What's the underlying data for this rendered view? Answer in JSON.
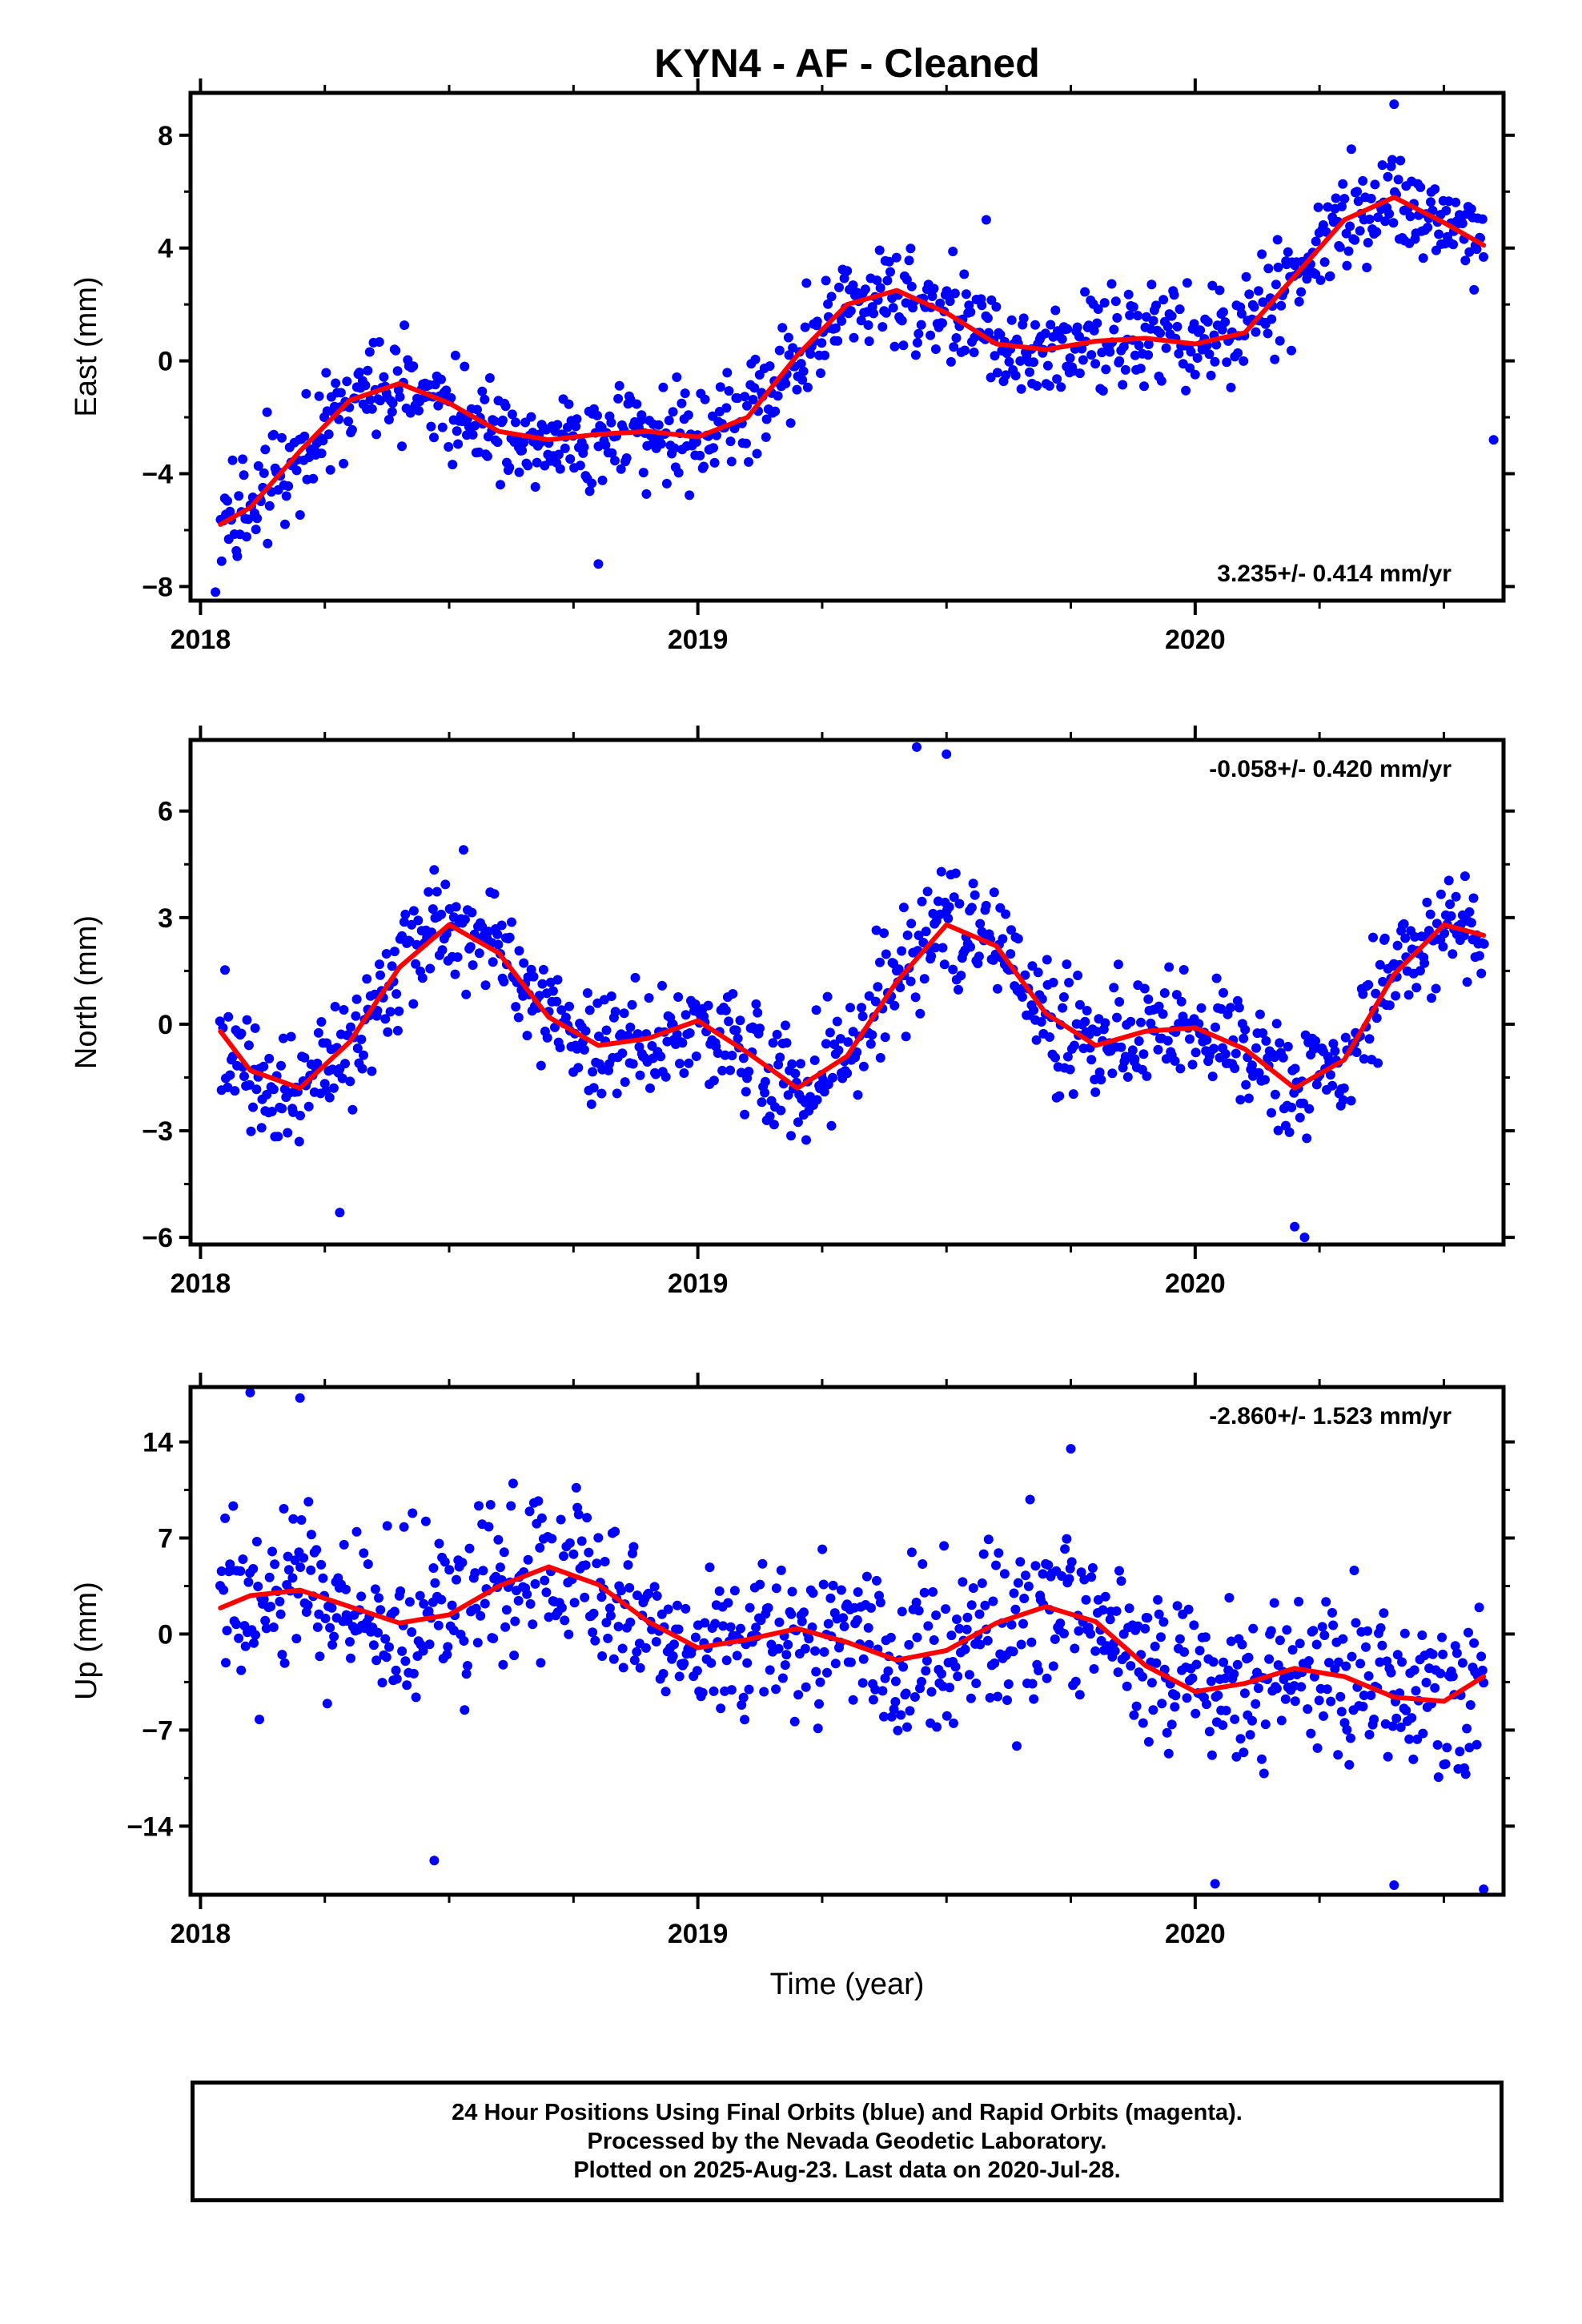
{
  "title": "KYN4  - AF - Cleaned",
  "colors": {
    "points": "#0000ff",
    "fit": "#ff0000",
    "frame": "#000000"
  },
  "xlabel": "Time (year)",
  "footer": {
    "line1": "24 Hour Positions Using Final Orbits (blue) and Rapid Orbits (magenta).",
    "line2": "Processed by the Nevada Geodetic Laboratory.",
    "line3": "Plotted on 2025-Aug-23. Last data on 2020-Jul-28."
  },
  "chart_data": [
    {
      "type": "scatter",
      "ylabel": "East (mm)",
      "rate_label": "3.235+/- 0.414 mm/yr",
      "rate_position": "bottom-right",
      "xlim": [
        2017.98,
        2020.62
      ],
      "ylim": [
        -8.5,
        9.5
      ],
      "xticks": [
        "2018",
        "2019",
        "2020"
      ],
      "yticks": [
        -8,
        -4,
        0,
        4,
        8
      ],
      "grid": false,
      "series": [
        {
          "kind": "points",
          "color": "#0000ff",
          "noise": 1.25,
          "note_points": [
            [
              2018.03,
              -8.2
            ],
            [
              2018.8,
              -7.2
            ],
            [
              2020.4,
              9.1
            ],
            [
              2020.6,
              -2.8
            ],
            [
              2019.58,
              5.0
            ]
          ]
        },
        {
          "kind": "fit-line",
          "color": "#ff0000",
          "x": [
            2018.04,
            2018.1,
            2018.2,
            2018.3,
            2018.4,
            2018.5,
            2018.6,
            2018.7,
            2018.8,
            2018.9,
            2019.0,
            2019.1,
            2019.2,
            2019.3,
            2019.4,
            2019.5,
            2019.6,
            2019.7,
            2019.8,
            2019.9,
            2020.0,
            2020.1,
            2020.2,
            2020.3,
            2020.4,
            2020.5,
            2020.58
          ],
          "y": [
            -5.8,
            -5.2,
            -3.2,
            -1.4,
            -0.8,
            -1.5,
            -2.5,
            -2.8,
            -2.6,
            -2.5,
            -2.7,
            -2.0,
            0.2,
            2.0,
            2.5,
            1.7,
            0.6,
            0.4,
            0.7,
            0.8,
            0.6,
            1.0,
            3.0,
            5.0,
            5.8,
            4.9,
            4.1
          ]
        }
      ]
    },
    {
      "type": "scatter",
      "ylabel": "North (mm)",
      "rate_label": "-0.058+/- 0.420 mm/yr",
      "rate_position": "top-right",
      "xlim": [
        2017.98,
        2020.62
      ],
      "ylim": [
        -6.2,
        8.0
      ],
      "xticks": [
        "2018",
        "2019",
        "2020"
      ],
      "yticks": [
        -6,
        -3,
        0,
        3,
        6
      ],
      "grid": false,
      "series": [
        {
          "kind": "points",
          "color": "#0000ff",
          "noise": 1.1,
          "note_points": [
            [
              2018.28,
              -5.3
            ],
            [
              2019.44,
              7.8
            ],
            [
              2019.5,
              7.6
            ],
            [
              2020.22,
              -6.0
            ],
            [
              2020.2,
              -5.7
            ]
          ]
        },
        {
          "kind": "fit-line",
          "color": "#ff0000",
          "x": [
            2018.04,
            2018.1,
            2018.2,
            2018.3,
            2018.4,
            2018.5,
            2018.6,
            2018.7,
            2018.8,
            2018.9,
            2019.0,
            2019.1,
            2019.2,
            2019.3,
            2019.4,
            2019.5,
            2019.6,
            2019.7,
            2019.8,
            2019.9,
            2020.0,
            2020.1,
            2020.2,
            2020.3,
            2020.4,
            2020.5,
            2020.58
          ],
          "y": [
            -0.2,
            -1.3,
            -1.8,
            -0.5,
            1.6,
            2.8,
            2.0,
            0.2,
            -0.6,
            -0.4,
            0.1,
            -0.8,
            -1.8,
            -0.9,
            1.2,
            2.8,
            2.2,
            0.3,
            -0.6,
            -0.2,
            -0.1,
            -0.7,
            -1.8,
            -1.0,
            1.4,
            2.8,
            2.5
          ]
        }
      ]
    },
    {
      "type": "scatter",
      "ylabel": "Up (mm)",
      "rate_label": "-2.860+/- 1.523 mm/yr",
      "rate_position": "top-right",
      "xlim": [
        2017.98,
        2020.62
      ],
      "ylim": [
        -19.0,
        18.0
      ],
      "xticks": [
        "2018",
        "2019",
        "2020"
      ],
      "yticks": [
        -14,
        -7,
        0,
        7,
        14
      ],
      "grid": false,
      "series": [
        {
          "kind": "points",
          "color": "#0000ff",
          "noise": 4.2,
          "note_points": [
            [
              2018.1,
              17.6
            ],
            [
              2018.2,
              17.2
            ],
            [
              2018.47,
              -16.5
            ],
            [
              2020.04,
              -18.2
            ],
            [
              2020.4,
              -18.3
            ],
            [
              2020.58,
              -18.6
            ],
            [
              2019.75,
              13.5
            ]
          ]
        },
        {
          "kind": "fit-line",
          "color": "#ff0000",
          "x": [
            2018.04,
            2018.1,
            2018.2,
            2018.3,
            2018.4,
            2018.5,
            2018.6,
            2018.7,
            2018.8,
            2018.9,
            2019.0,
            2019.1,
            2019.2,
            2019.3,
            2019.4,
            2019.5,
            2019.6,
            2019.7,
            2019.8,
            2019.9,
            2020.0,
            2020.1,
            2020.2,
            2020.3,
            2020.4,
            2020.5,
            2020.58
          ],
          "y": [
            1.9,
            2.8,
            3.2,
            2.0,
            0.8,
            1.4,
            3.5,
            4.9,
            3.6,
            0.9,
            -1.0,
            -0.4,
            0.4,
            -0.6,
            -1.9,
            -1.2,
            0.8,
            2.0,
            0.9,
            -2.3,
            -4.2,
            -3.6,
            -2.5,
            -3.1,
            -4.6,
            -4.9,
            -3.1
          ]
        }
      ]
    }
  ]
}
